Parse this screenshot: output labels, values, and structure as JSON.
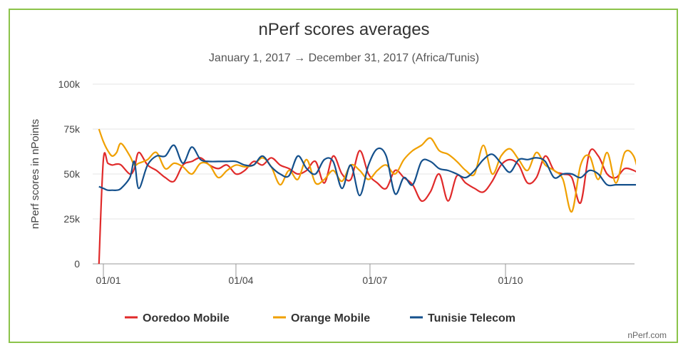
{
  "chart_data": {
    "type": "line",
    "title": "nPerf scores averages",
    "subtitle": "January 1, 2017 → December 31, 2017 (Africa/Tunis)",
    "credit": "nPerf.com",
    "ylabel": "nPerf scores in nPoints",
    "xlabel": "",
    "ylim": [
      0,
      100000
    ],
    "yticks": [
      0,
      25000,
      50000,
      75000,
      100000
    ],
    "ytick_labels": [
      "0",
      "25k",
      "50k",
      "75k",
      "100k"
    ],
    "xticks": [
      "01/01",
      "01/04",
      "01/07",
      "01/10"
    ],
    "x_year": 2017,
    "grid": true,
    "legend_position": "bottom",
    "x": [
      "29/12",
      "01/01",
      "04/01",
      "07/01",
      "10/01",
      "13/01",
      "19/01",
      "22/01",
      "25/01",
      "31/01",
      "06/02",
      "12/02",
      "18/02",
      "24/02",
      "02/03",
      "08/03",
      "14/03",
      "20/03",
      "26/03",
      "01/04",
      "07/04",
      "13/04",
      "19/04",
      "25/04",
      "01/05",
      "07/05",
      "13/05",
      "19/05",
      "25/05",
      "31/05",
      "06/06",
      "12/06",
      "18/06",
      "24/06",
      "30/06",
      "06/07",
      "12/07",
      "18/07",
      "24/07",
      "30/07",
      "05/08",
      "11/08",
      "17/08",
      "23/08",
      "29/08",
      "04/09",
      "10/09",
      "16/09",
      "22/09",
      "28/09",
      "04/10",
      "10/10",
      "16/10",
      "22/10",
      "28/10",
      "03/11",
      "09/11",
      "15/11",
      "21/11",
      "27/11",
      "03/12",
      "09/12",
      "15/12",
      "21/12",
      "27/12",
      "31/12"
    ],
    "series": [
      {
        "name": "Ooredoo Mobile",
        "color": "#e02a2a",
        "values": [
          0,
          58000,
          56000,
          55000,
          55500,
          55000,
          50000,
          53000,
          62000,
          55000,
          52000,
          48000,
          46000,
          55000,
          57000,
          59000,
          55000,
          53000,
          55000,
          50000,
          52000,
          57000,
          55000,
          59000,
          55000,
          53000,
          50000,
          52000,
          57000,
          45000,
          60000,
          50000,
          47000,
          63000,
          50000,
          45000,
          42000,
          52000,
          48000,
          44000,
          35000,
          40000,
          50000,
          35000,
          49000,
          45000,
          42000,
          40000,
          46000,
          55000,
          58000,
          55000,
          45000,
          48000,
          60000,
          52000,
          50000,
          48000,
          34000,
          62000,
          60000,
          50000,
          48000,
          53000,
          52000,
          50000
        ]
      },
      {
        "name": "Orange Mobile",
        "color": "#f0a000",
        "values": [
          75000,
          68000,
          63000,
          60000,
          62000,
          67000,
          60000,
          55000,
          56000,
          58000,
          62000,
          53000,
          56000,
          54000,
          50000,
          56000,
          55000,
          48000,
          52000,
          55000,
          54000,
          55000,
          59000,
          54000,
          44000,
          52000,
          47000,
          58000,
          45000,
          47000,
          52000,
          46000,
          55000,
          52000,
          47000,
          52000,
          55000,
          50000,
          58000,
          63000,
          66000,
          70000,
          63000,
          61000,
          57000,
          52000,
          50000,
          66000,
          50000,
          60000,
          64000,
          58000,
          52000,
          62000,
          55000,
          52000,
          47000,
          29000,
          55000,
          60000,
          47000,
          62000,
          45000,
          62000,
          60000,
          48000
        ]
      },
      {
        "name": "Tunisie Telecom",
        "color": "#14508c",
        "values": [
          43000,
          42000,
          41000,
          41000,
          41000,
          42000,
          48000,
          57000,
          42000,
          55000,
          60000,
          60000,
          66000,
          56000,
          65000,
          58000,
          57000,
          57000,
          57000,
          57000,
          55000,
          55000,
          60000,
          54000,
          50000,
          49000,
          60000,
          53000,
          50000,
          58000,
          57000,
          42000,
          55000,
          38000,
          55000,
          64000,
          60000,
          39000,
          48000,
          44000,
          57000,
          57000,
          53000,
          52000,
          50000,
          48000,
          52000,
          58000,
          61000,
          56000,
          51000,
          58000,
          58000,
          59000,
          57000,
          48000,
          50000,
          50000,
          48000,
          52000,
          50000,
          44000,
          44000,
          44000,
          44000,
          44000
        ]
      }
    ]
  }
}
